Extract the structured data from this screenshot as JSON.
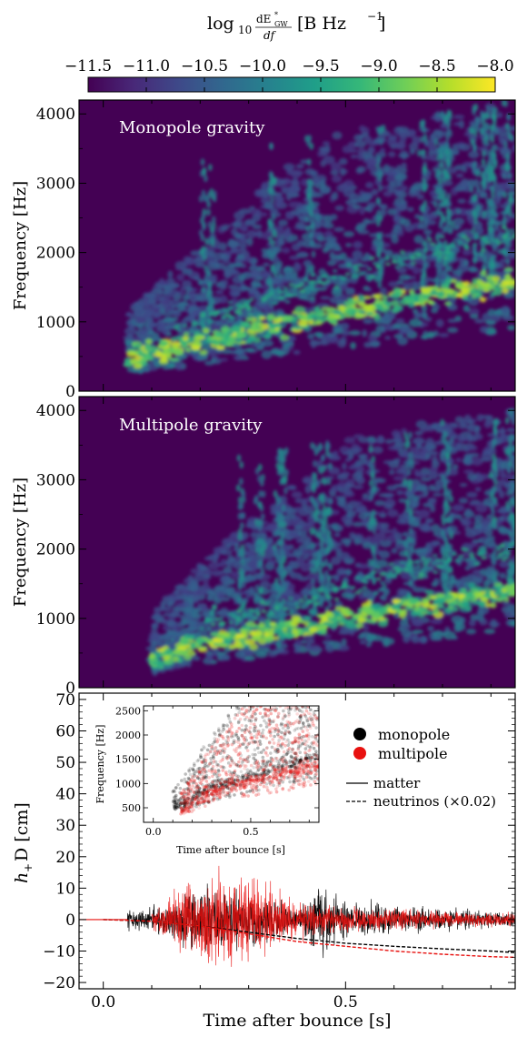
{
  "colorbar": {
    "label_main": "log",
    "label_sub": "10",
    "label_rest": "[B Hz",
    "label_exp": "−1",
    "label_close": "]",
    "frac_num": "dE",
    "frac_num_sup": "*",
    "frac_num_sub": "GW",
    "frac_den": "df",
    "ticks": [
      "−11.5",
      "−11.0",
      "−10.5",
      "−10.0",
      "−9.5",
      "−9.0",
      "−8.5",
      "−8.0"
    ],
    "range": [
      -11.5,
      -8.0
    ],
    "colormap": [
      "#440154",
      "#482878",
      "#3e4989",
      "#31688e",
      "#26828e",
      "#1f9e89",
      "#35b779",
      "#6ece58",
      "#b5de2b",
      "#fde725"
    ]
  },
  "chart_data": [
    {
      "type": "heatmap",
      "title": "Monopole gravity",
      "ylabel": "Frequency [Hz]",
      "ylim": [
        0,
        4200
      ],
      "xlim": [
        -0.05,
        0.85
      ],
      "yticks": [
        "0",
        "1000",
        "2000",
        "3000",
        "4000"
      ],
      "ytick_values": [
        0,
        1000,
        2000,
        3000,
        4000
      ],
      "background_color": "#440154",
      "dominant_ridge": [
        [
          0.05,
          500
        ],
        [
          0.2,
          700
        ],
        [
          0.35,
          950
        ],
        [
          0.5,
          1150
        ],
        [
          0.65,
          1350
        ],
        [
          0.85,
          1600
        ]
      ]
    },
    {
      "type": "heatmap",
      "title": "Multipole gravity",
      "ylabel": "Frequency [Hz]",
      "ylim": [
        0,
        4200
      ],
      "xlim": [
        -0.05,
        0.85
      ],
      "yticks": [
        "0",
        "1000",
        "2000",
        "3000",
        "4000"
      ],
      "ytick_values": [
        0,
        1000,
        2000,
        3000,
        4000
      ],
      "background_color": "#440154",
      "dominant_ridge": [
        [
          0.1,
          400
        ],
        [
          0.2,
          650
        ],
        [
          0.35,
          800
        ],
        [
          0.5,
          1000
        ],
        [
          0.65,
          1200
        ],
        [
          0.85,
          1400
        ]
      ]
    },
    {
      "type": "line",
      "xlabel": "Time after bounce [s]",
      "ylabel": "h",
      "ylabel_sub": "+",
      "ylabel_rest": "D [cm]",
      "xlim": [
        -0.05,
        0.85
      ],
      "ylim": [
        -22,
        72
      ],
      "xticks": [
        "0.0",
        "0.5"
      ],
      "xtick_values": [
        0.0,
        0.5
      ],
      "yticks": [
        "−20",
        "−10",
        "0",
        "10",
        "20",
        "30",
        "40",
        "50",
        "60",
        "70"
      ],
      "ytick_values": [
        -20,
        -10,
        0,
        10,
        20,
        30,
        40,
        50,
        60,
        70
      ],
      "legend_markers": [
        {
          "label": "monopole",
          "color": "#000000"
        },
        {
          "label": "multipole",
          "color": "#e8110f"
        }
      ],
      "legend_lines": [
        {
          "label": "matter",
          "style": "solid"
        },
        {
          "label": "neutrinos (×0.02)",
          "style": "dashed"
        }
      ],
      "series": [
        {
          "group": "monopole",
          "kind": "neutrinos",
          "color": "#000000",
          "x": [
            0.0,
            0.1,
            0.2,
            0.3,
            0.4,
            0.5,
            0.6,
            0.7,
            0.8,
            0.85
          ],
          "y": [
            0,
            -0.5,
            -2,
            -4,
            -6,
            -7.5,
            -8.5,
            -9.3,
            -10,
            -10.5
          ]
        },
        {
          "group": "multipole",
          "kind": "neutrinos",
          "color": "#e8110f",
          "x": [
            0.0,
            0.1,
            0.2,
            0.3,
            0.4,
            0.5,
            0.6,
            0.7,
            0.8,
            0.85
          ],
          "y": [
            0,
            -0.5,
            -2,
            -4.5,
            -7,
            -8.5,
            -10,
            -11,
            -11.8,
            -12
          ]
        },
        {
          "group": "monopole",
          "kind": "matter",
          "color": "#000000",
          "envelope_x": [
            0.05,
            0.1,
            0.2,
            0.3,
            0.4,
            0.45,
            0.5,
            0.6,
            0.7,
            0.85
          ],
          "envelope_y": [
            4,
            5,
            12,
            10,
            5,
            15,
            8,
            5,
            4,
            3
          ]
        },
        {
          "group": "multipole",
          "kind": "matter",
          "color": "#e8110f",
          "envelope_x": [
            0.1,
            0.15,
            0.2,
            0.25,
            0.3,
            0.35,
            0.4,
            0.5,
            0.6,
            0.7,
            0.85
          ],
          "envelope_y": [
            4,
            10,
            18,
            20,
            17,
            12,
            7,
            5,
            4,
            3,
            3
          ]
        }
      ],
      "inset": {
        "type": "scatter",
        "xlabel": "Time after bounce [s]",
        "ylabel": "Frequency [Hz]",
        "xlim": [
          -0.05,
          0.85
        ],
        "ylim": [
          200,
          2600
        ],
        "xticks": [
          "0.0",
          "0.5"
        ],
        "xtick_values": [
          0.0,
          0.5
        ],
        "yticks": [
          "500",
          "1000",
          "1500",
          "2000",
          "2500"
        ],
        "ytick_values": [
          500,
          1000,
          1500,
          2000,
          2500
        ],
        "series": [
          {
            "name": "monopole",
            "color": "#000000",
            "ridge": [
              [
                0.15,
                600
              ],
              [
                0.3,
                900
              ],
              [
                0.45,
                1100
              ],
              [
                0.6,
                1300
              ],
              [
                0.85,
                1550
              ]
            ]
          },
          {
            "name": "multipole",
            "color": "#e8110f",
            "ridge": [
              [
                0.15,
                500
              ],
              [
                0.3,
                800
              ],
              [
                0.45,
                1000
              ],
              [
                0.6,
                1150
              ],
              [
                0.85,
                1350
              ]
            ]
          }
        ]
      }
    }
  ]
}
